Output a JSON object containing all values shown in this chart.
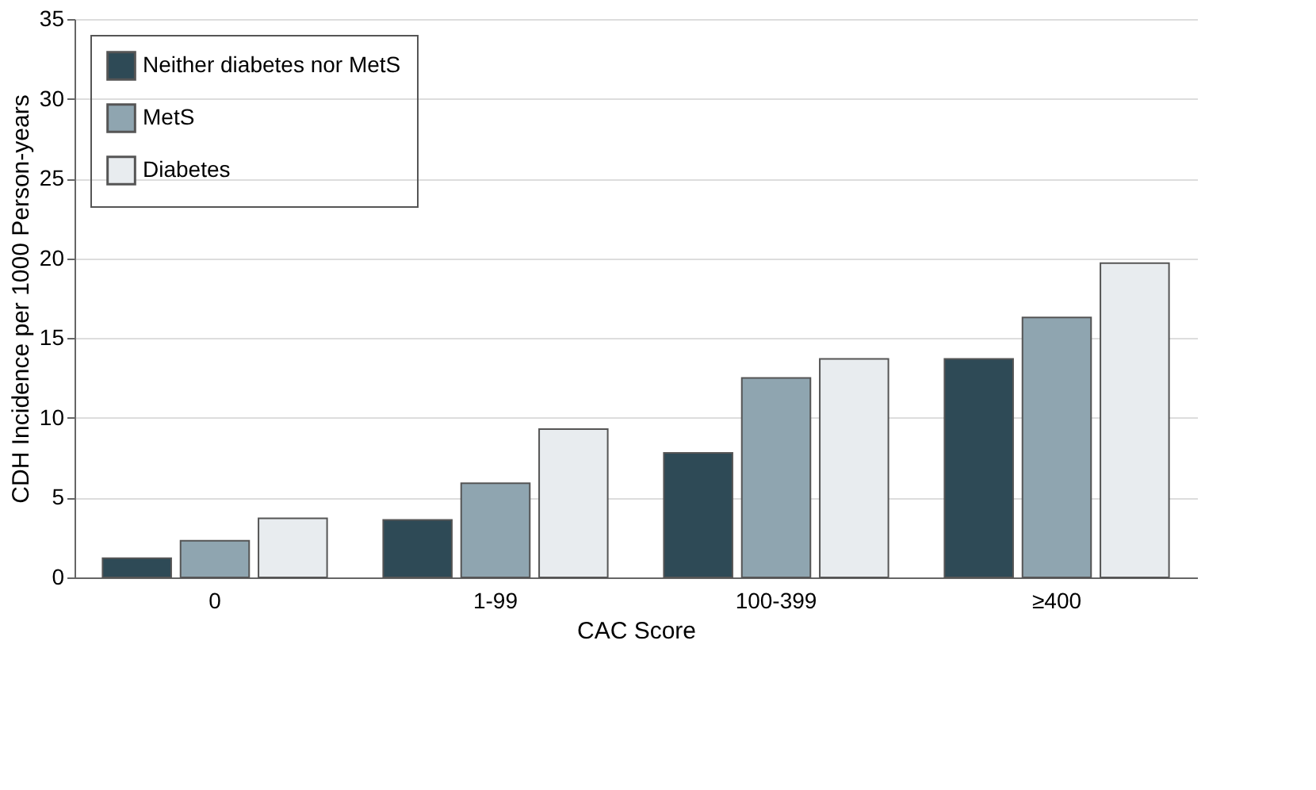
{
  "chart_data": {
    "type": "bar",
    "xlabel": "CAC Score",
    "ylabel": "CDH Incidence per 1000 Person-years",
    "categories": [
      "0",
      "1-99",
      "100-399",
      "≥400"
    ],
    "series": [
      {
        "name": "Neither diabetes nor MetS",
        "color": "#2e4a56",
        "values": [
          1.2,
          3.6,
          7.8,
          13.7
        ]
      },
      {
        "name": "MetS",
        "color": "#8fa5b0",
        "values": [
          2.3,
          5.9,
          12.5,
          16.3
        ]
      },
      {
        "name": "Diabetes",
        "color": "#e8ecef",
        "values": [
          3.7,
          9.3,
          13.7,
          19.7
        ]
      }
    ],
    "ylim": [
      0,
      35
    ],
    "yticks": [
      0,
      5,
      10,
      15,
      20,
      25,
      30,
      35
    ],
    "grid": "y",
    "legend": "top left"
  }
}
